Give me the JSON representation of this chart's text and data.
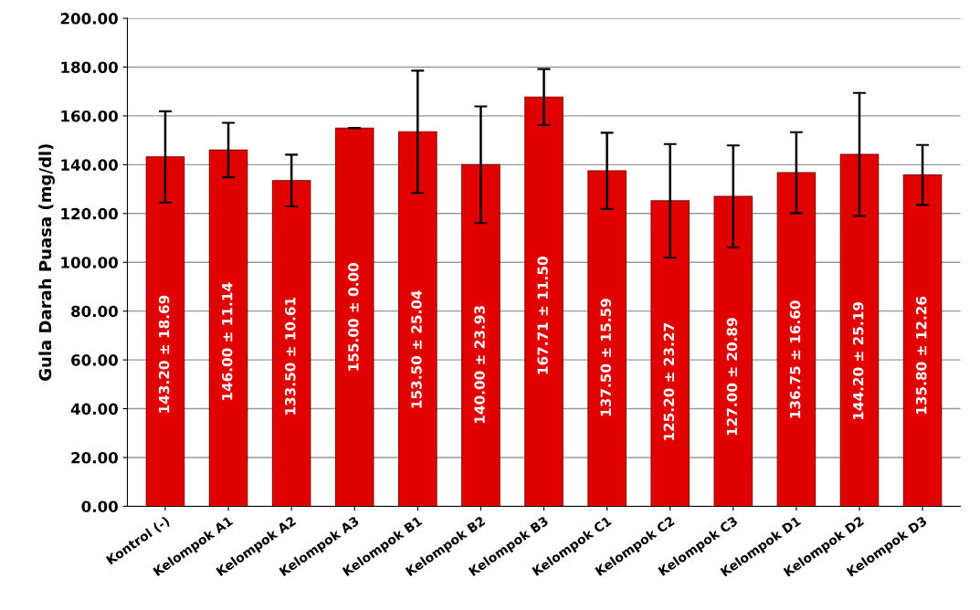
{
  "chart_data": {
    "type": "bar",
    "ylabel": "Gula Darah Puasa (mg/dl)",
    "categories": [
      "Kontrol (-)",
      "Kelompok A1",
      "Kelompok A2",
      "Kelompok A3",
      "Kelompok B1",
      "Kelompok B2",
      "Kelompok B3",
      "Kelompok C1",
      "Kelompok C2",
      "Kelompok C3",
      "Kelompok D1",
      "Kelompok D2",
      "Kelompok D3"
    ],
    "values": [
      143.2,
      146.0,
      133.5,
      155.0,
      153.5,
      140.0,
      167.71,
      137.5,
      125.2,
      127.0,
      136.75,
      144.2,
      135.8
    ],
    "errors": [
      18.69,
      11.14,
      10.61,
      0.0,
      25.04,
      23.93,
      11.5,
      15.59,
      23.27,
      20.89,
      16.6,
      25.19,
      12.26
    ],
    "value_labels": [
      "143.20 ± 18.69",
      "146.00 ± 11.14",
      "133.50 ± 10.61",
      "155.00 ± 0.00",
      "153.50 ± 25.04",
      "140.00 ± 23.93",
      "167.71 ± 11.50",
      "137.50 ± 15.59",
      "125.20 ± 23.27",
      "127.00 ± 20.89",
      "136.75 ± 16.60",
      "144.20 ± 25.19",
      "135.80 ± 12.26"
    ],
    "color": "#e00000",
    "ylim": [
      0,
      200
    ],
    "yticks": [
      {
        "value": 0,
        "label": "0.00"
      },
      {
        "value": 20,
        "label": "20.00"
      },
      {
        "value": 40,
        "label": "40.00"
      },
      {
        "value": 60,
        "label": "60.00"
      },
      {
        "value": 80,
        "label": "80.00"
      },
      {
        "value": 100,
        "label": "100.00"
      },
      {
        "value": 120,
        "label": "120.00"
      },
      {
        "value": 140,
        "label": "140.00"
      },
      {
        "value": 160,
        "label": "160.00"
      },
      {
        "value": 180,
        "label": "180.00"
      },
      {
        "value": 200,
        "label": "200.00"
      }
    ],
    "grid": "y"
  }
}
